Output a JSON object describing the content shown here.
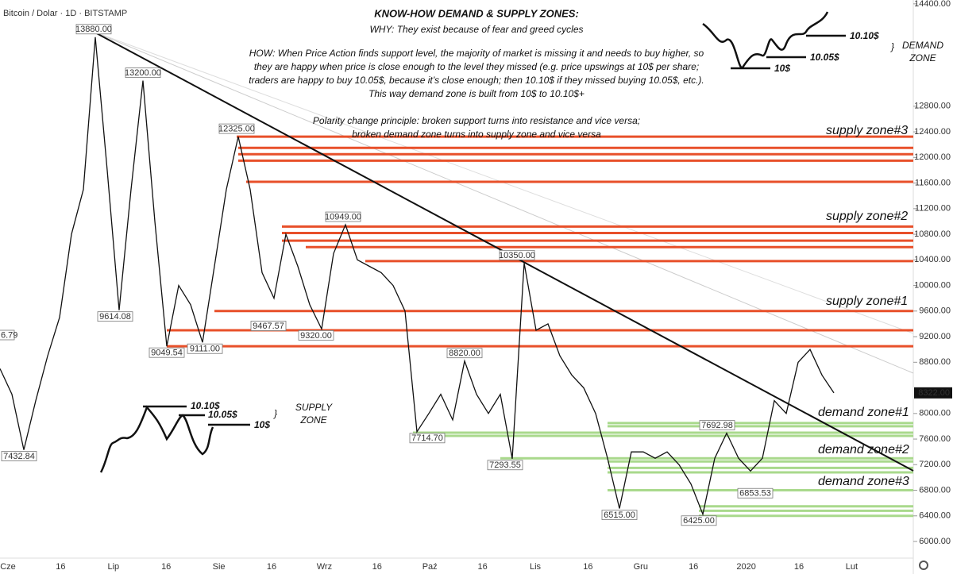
{
  "chart_data": {
    "type": "line",
    "legend": "Bitcoin / Dolar · 1D · BITSTAMP",
    "color": "#111111",
    "title": "KNOW-HOW DEMAND & SUPPLY ZONES:",
    "subtitle": "WHY: They exist because of fear and greed cycles",
    "notes": [
      "HOW: When Price Action finds support level, the majority of market is missing it and needs to buy higher, so",
      "they are happy when price is close enough to the level they missed (e.g. price upswings at 10$ per share;",
      "traders are happy to buy 10.05$, because it’s close enough; then 10.10$ if they missed buying 10.05$, etc.).",
      "This way demand zone is built from 10$ to 10.10$+",
      "",
      "Polarity change principle: broken support turns into resistance and vice versa;",
      "broken demand zone turns into supply zone and vice versa"
    ],
    "values": [
      8700,
      8300,
      7432,
      8200,
      8900,
      9500,
      10800,
      11500,
      13880,
      11800,
      9614,
      11500,
      13200,
      11000,
      9049,
      10000,
      9700,
      9111,
      10300,
      11500,
      12325,
      11500,
      10200,
      9800,
      10800,
      10300,
      9700,
      9320,
      10500,
      10949,
      10400,
      10300,
      10200,
      10000,
      9600,
      7714,
      8000,
      8300,
      7900,
      8820,
      8300,
      8000,
      8300,
      7293,
      10350,
      9300,
      9400,
      8900,
      8600,
      8400,
      8000,
      7300,
      6515,
      7400,
      7400,
      7300,
      7400,
      7200,
      6900,
      6425,
      7300,
      7692,
      7300,
      7100,
      7300,
      8200,
      8000,
      8800,
      9000,
      8600,
      8322
    ],
    "ylim": [
      5740,
      14460
    ],
    "yticks": [
      {
        "value": 6000,
        "label": "6000.00"
      },
      {
        "value": 6400,
        "label": "6400.00"
      },
      {
        "value": 6800,
        "label": "6800.00"
      },
      {
        "value": 7200,
        "label": "7200.00"
      },
      {
        "value": 7600,
        "label": "7600.00"
      },
      {
        "value": 8000,
        "label": "8000.00"
      },
      {
        "value": 8800,
        "label": "8800.00"
      },
      {
        "value": 9200,
        "label": "9200.00"
      },
      {
        "value": 9600,
        "label": "9600.00"
      },
      {
        "value": 10000,
        "label": "10000.00"
      },
      {
        "value": 10400,
        "label": "10400.00"
      },
      {
        "value": 10800,
        "label": "10800.00"
      },
      {
        "value": 11200,
        "label": "11200.00"
      },
      {
        "value": 11600,
        "label": "11600.00"
      },
      {
        "value": 12000,
        "label": "12000.00"
      },
      {
        "value": 12400,
        "label": "12400.00"
      },
      {
        "value": 12800,
        "label": "12800.00"
      },
      {
        "value": 14400,
        "label": "14400.00"
      }
    ],
    "last_price": {
      "value": 8322,
      "label": "8322.00"
    },
    "xtick_labels": [
      "Cze",
      "16",
      "Lip",
      "16",
      "Sie",
      "16",
      "Wrz",
      "16",
      "Paź",
      "16",
      "Lis",
      "16",
      "Gru",
      "16",
      "2020",
      "16",
      "Lut"
    ],
    "price_labels": [
      {
        "value": 13880,
        "label": "13880.00"
      },
      {
        "value": 13200,
        "label": "13200.00"
      },
      {
        "value": 12325,
        "label": "12325.00"
      },
      {
        "value": 10949,
        "label": "10949.00"
      },
      {
        "value": 10350,
        "label": "10350.00"
      },
      {
        "value": 9614,
        "label": "9614.08"
      },
      {
        "value": 9049.54,
        "label": "9049.54"
      },
      {
        "value": 9111,
        "label": "9111.00"
      },
      {
        "value": 9467.57,
        "label": "9467.57"
      },
      {
        "value": 9320,
        "label": "9320.00"
      },
      {
        "value": 8820,
        "label": "8820.00"
      },
      {
        "value": 7714.7,
        "label": "7714.70"
      },
      {
        "value": 7293.55,
        "label": "7293.55"
      },
      {
        "value": 6515,
        "label": "6515.00"
      },
      {
        "value": 6425,
        "label": "6425.00"
      },
      {
        "value": 7692.98,
        "label": "7692.98"
      },
      {
        "value": 6853.53,
        "label": "6853.53"
      },
      {
        "value": 7432.84,
        "label": "7432.84"
      }
    ],
    "edge_label": "6.79",
    "zones": [
      {
        "name": "supply zone#3",
        "color": "#e8502a",
        "levels": [
          12325,
          12150,
          12050,
          11950,
          11620
        ]
      },
      {
        "name": "supply zone#2",
        "color": "#e8502a",
        "levels": [
          10920,
          10820,
          10700,
          10600,
          10380
        ]
      },
      {
        "name": "supply zone#1",
        "color": "#e8502a",
        "levels": [
          9600,
          9300,
          9050
        ]
      },
      {
        "name": "demand zone#1",
        "color": "#a9d98c",
        "levels": [
          7850,
          7800,
          7700,
          7650
        ]
      },
      {
        "name": "demand zone#2",
        "color": "#a9d98c",
        "levels": [
          7300,
          7250,
          7150,
          7080
        ]
      },
      {
        "name": "demand zone#3",
        "color": "#a9d98c",
        "levels": [
          6800,
          6550,
          6480,
          6400
        ]
      }
    ],
    "sketch_demand": {
      "labels": [
        "10.10$",
        "10.05$",
        "10$"
      ],
      "title": [
        "DEMAND",
        "ZONE"
      ]
    },
    "sketch_supply": {
      "labels": [
        "10.10$",
        "10.05$",
        "10$"
      ],
      "title": [
        "SUPPLY",
        "ZONE"
      ]
    }
  }
}
